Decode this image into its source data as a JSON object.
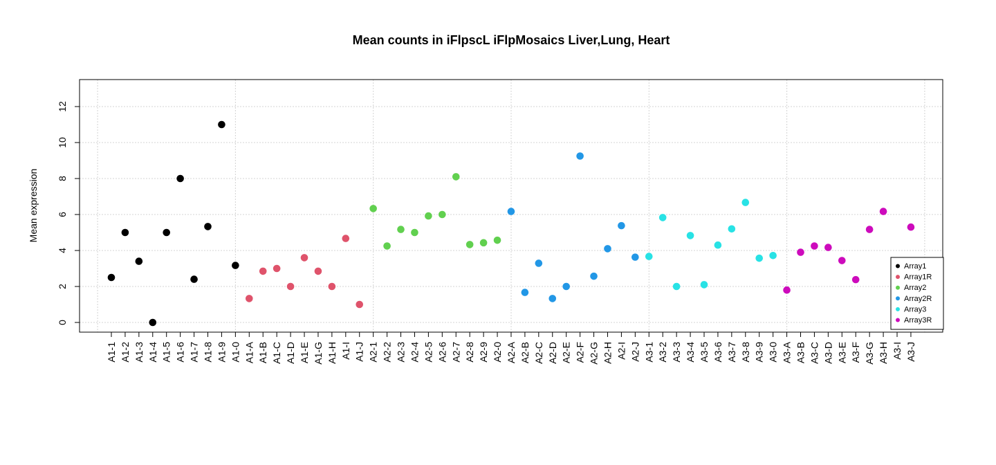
{
  "chart_data": {
    "type": "scatter",
    "title": "Mean counts in iFlpscL iFlpMosaics Liver,Lung, Heart",
    "ylabel": "Mean expression",
    "xlabel": "",
    "ylim": [
      -0.5,
      13.3
    ],
    "yticks": [
      0,
      2,
      4,
      6,
      8,
      10,
      12
    ],
    "grid": true,
    "legend_position": "bottom-right",
    "categories": [
      "A1-1",
      "A1-2",
      "A1-3",
      "A1-4",
      "A1-5",
      "A1-6",
      "A1-7",
      "A1-8",
      "A1-9",
      "A1-0",
      "A1-A",
      "A1-B",
      "A1-C",
      "A1-D",
      "A1-E",
      "A1-G",
      "A1-H",
      "A1-I",
      "A1-J",
      "A2-1",
      "A2-2",
      "A2-3",
      "A2-4",
      "A2-5",
      "A2-6",
      "A2-7",
      "A2-8",
      "A2-9",
      "A2-0",
      "A2-A",
      "A2-B",
      "A2-C",
      "A2-D",
      "A2-E",
      "A2-F",
      "A2-G",
      "A2-H",
      "A2-I",
      "A2-J",
      "A3-1",
      "A3-2",
      "A3-3",
      "A3-4",
      "A3-5",
      "A3-6",
      "A3-7",
      "A3-8",
      "A3-9",
      "A3-0",
      "A3-A",
      "A3-B",
      "A3-C",
      "A3-D",
      "A3-E",
      "A3-F",
      "A3-G",
      "A3-H",
      "A3-I",
      "A3-J"
    ],
    "series": [
      {
        "name": "Array1",
        "color": "#000000",
        "start": 0,
        "values": [
          2.5,
          5.0,
          3.4,
          0.0,
          5.0,
          8.0,
          2.4,
          5.33,
          11.0,
          3.17
        ]
      },
      {
        "name": "Array1R",
        "color": "#DF536B",
        "start": 10,
        "values": [
          1.33,
          2.85,
          3.0,
          2.0,
          3.6,
          2.85,
          2.0,
          4.67,
          1.0
        ]
      },
      {
        "name": "Array2",
        "color": "#61D04F",
        "start": 19,
        "values": [
          6.33,
          4.25,
          5.17,
          5.0,
          5.92,
          6.0,
          8.1,
          4.33,
          4.43,
          4.57
        ]
      },
      {
        "name": "Array2R",
        "color": "#2297E6",
        "start": 29,
        "values": [
          6.17,
          1.67,
          3.29,
          1.33,
          2.0,
          9.25,
          2.57,
          4.1,
          5.38,
          3.63
        ]
      },
      {
        "name": "Array3",
        "color": "#28E2E5",
        "start": 39,
        "values": [
          3.67,
          5.83,
          2.0,
          4.83,
          2.1,
          4.3,
          5.2,
          6.67,
          3.57,
          3.72
        ]
      },
      {
        "name": "Array3R",
        "color": "#CD0BBC",
        "start": 49,
        "values": [
          1.8,
          3.9,
          4.25,
          4.17,
          3.44,
          2.38,
          5.17,
          6.17,
          null,
          5.3
        ]
      }
    ]
  }
}
